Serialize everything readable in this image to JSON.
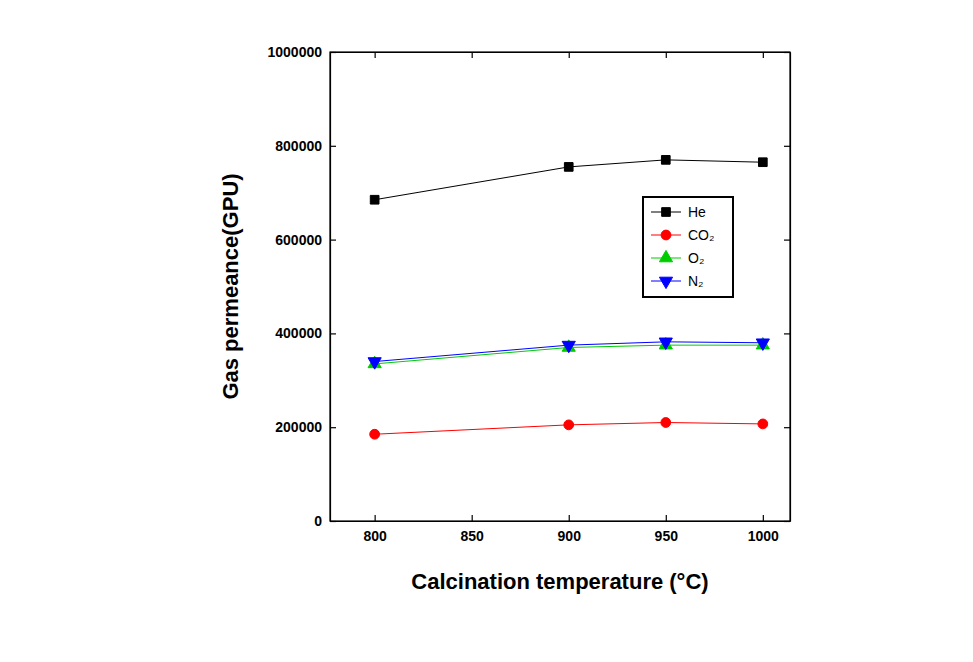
{
  "chart_data": {
    "type": "line",
    "x_label": "Calcination temperature (°C)",
    "y_label": "Gas permeance(GPU)",
    "x": [
      800,
      900,
      950,
      1000
    ],
    "series": [
      {
        "name": "He",
        "color": "#000000",
        "marker": "square",
        "values": [
          685000,
          755000,
          770000,
          765000
        ]
      },
      {
        "name": "CO₂",
        "color": "#ff0000",
        "marker": "circle",
        "values": [
          185000,
          205000,
          210000,
          207000
        ]
      },
      {
        "name": "O₂",
        "color": "#00cc00",
        "marker": "triangle-up",
        "values": [
          335000,
          370000,
          375000,
          375000
        ]
      },
      {
        "name": "N₂",
        "color": "#0000ff",
        "marker": "triangle-down",
        "values": [
          340000,
          375000,
          382000,
          380000
        ]
      }
    ],
    "xlim": [
      777,
      1014
    ],
    "xticks": [
      800,
      850,
      900,
      950,
      1000
    ],
    "ylim": [
      0,
      1000000
    ],
    "yticks": [
      0,
      200000,
      400000,
      600000,
      800000,
      1000000
    ],
    "legend": "upper right",
    "grid": false
  }
}
